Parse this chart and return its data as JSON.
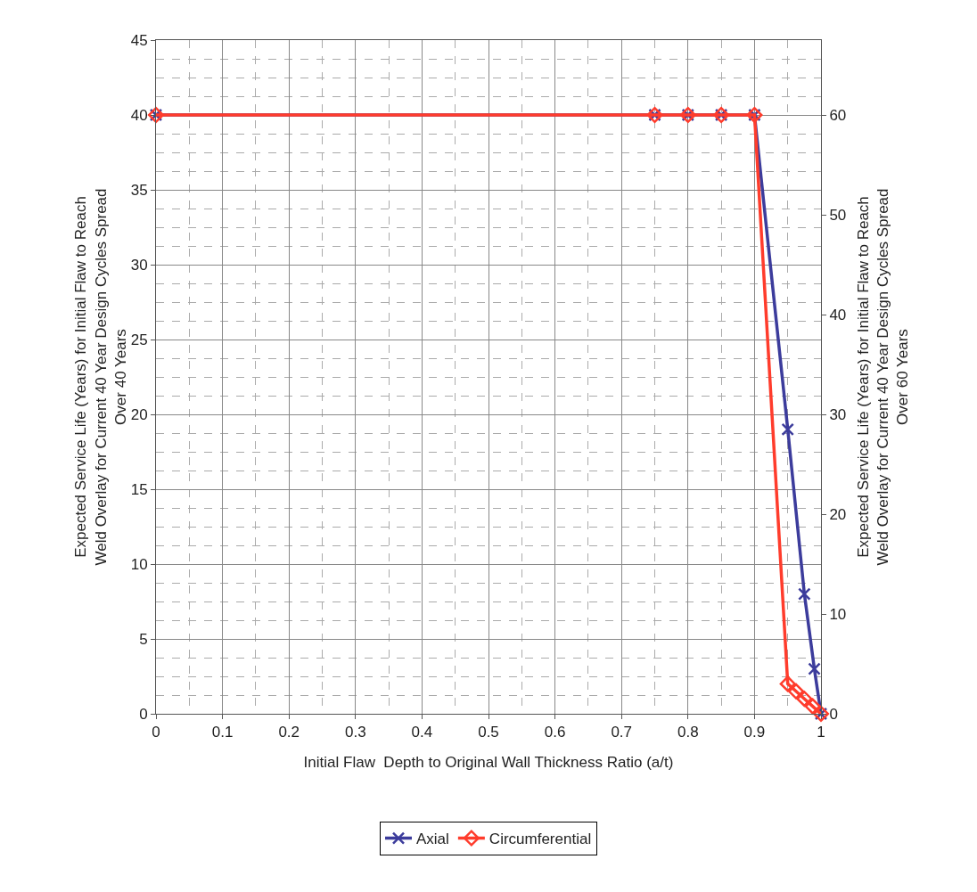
{
  "chart_data": {
    "type": "line",
    "xlabel": "Initial Flaw  Depth to Original Wall Thickness Ratio (a/t)",
    "ylabel": "Expected Service Life (Years) for Initial Flaw to Reach Weld Overlay for Current 40 Year Design Cycles Spread Over 40 Years",
    "y2label": "Expected Service Life (Years) for Initial Flaw to Reach Weld Overlay for Current 40 Year Design Cycles Spread Over 60 Years",
    "xlim": [
      0,
      1
    ],
    "xticks": [
      0,
      0.1,
      0.2,
      0.3,
      0.4,
      0.5,
      0.6,
      0.7,
      0.8,
      0.9,
      1
    ],
    "ylim": [
      0,
      45
    ],
    "yticks": [
      0,
      5,
      10,
      15,
      20,
      25,
      30,
      35,
      40,
      45
    ],
    "y2lim": [
      0,
      67.5
    ],
    "y2ticks": [
      0,
      10,
      20,
      30,
      40,
      50,
      60
    ],
    "grid": true,
    "legend": "bottom",
    "line_style": "solid",
    "series": [
      {
        "name": "Axial",
        "color": "#3c3c9c",
        "marker": "cross",
        "x": [
          0,
          0.75,
          0.8,
          0.85,
          0.9,
          0.95,
          0.975,
          0.99,
          1
        ],
        "values": [
          40,
          40,
          40,
          40,
          40,
          19,
          8,
          3,
          0
        ]
      },
      {
        "name": "Circumferential",
        "color": "#ff3c2c",
        "marker": "diamond",
        "x": [
          0,
          0.75,
          0.8,
          0.85,
          0.9,
          0.95,
          0.9625,
          0.975,
          0.9875,
          1
        ],
        "values": [
          40,
          40,
          40,
          40,
          40,
          2,
          1.5,
          1,
          0.5,
          0
        ]
      }
    ]
  }
}
